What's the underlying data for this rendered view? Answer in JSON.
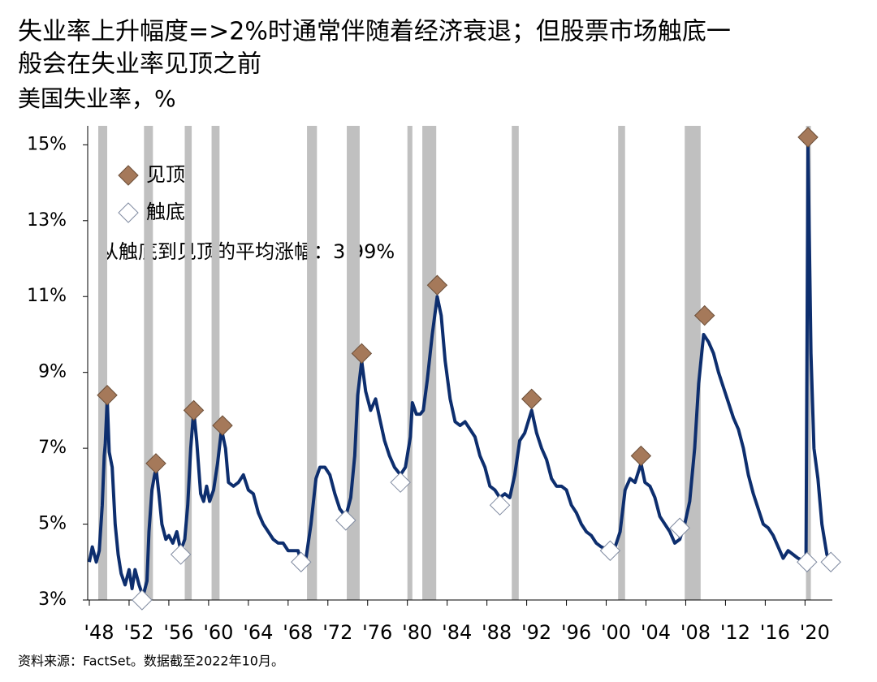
{
  "chart_data": {
    "type": "line",
    "title": [
      "失业率上升幅度=>2%时通常伴随着经济衰退；但股票市场触底一",
      "般会在失业率见顶之前"
    ],
    "subtitle": "美国失业率，%",
    "annotation": "从触底到见顶的平均涨幅：3.99%",
    "source": "资料来源：FactSet。数据截至2022年10月。",
    "xlim": [
      1948,
      2022.75
    ],
    "ylim": [
      3,
      15.5
    ],
    "xticks": [
      {
        "value": 1948,
        "label": "'48"
      },
      {
        "value": 1952,
        "label": "'52"
      },
      {
        "value": 1956,
        "label": "'56"
      },
      {
        "value": 1960,
        "label": "'60"
      },
      {
        "value": 1964,
        "label": "'64"
      },
      {
        "value": 1968,
        "label": "'68"
      },
      {
        "value": 1972,
        "label": "'72"
      },
      {
        "value": 1976,
        "label": "'76"
      },
      {
        "value": 1980,
        "label": "'80"
      },
      {
        "value": 1984,
        "label": "'84"
      },
      {
        "value": 1988,
        "label": "'88"
      },
      {
        "value": 1992,
        "label": "'92"
      },
      {
        "value": 1996,
        "label": "'96"
      },
      {
        "value": 2000,
        "label": "'00"
      },
      {
        "value": 2004,
        "label": "'04"
      },
      {
        "value": 2008,
        "label": "'08"
      },
      {
        "value": 2012,
        "label": "'12"
      },
      {
        "value": 2016,
        "label": "'16"
      },
      {
        "value": 2020,
        "label": "'20"
      }
    ],
    "yticks": [
      {
        "value": 3,
        "label": "3%"
      },
      {
        "value": 5,
        "label": "5%"
      },
      {
        "value": 7,
        "label": "7%"
      },
      {
        "value": 9,
        "label": "9%"
      },
      {
        "value": 11,
        "label": "11%"
      },
      {
        "value": 13,
        "label": "13%"
      },
      {
        "value": 15,
        "label": "15%"
      }
    ],
    "recession_color": "#c0c0c0",
    "recessions": [
      [
        1948.9,
        1949.8
      ],
      [
        1953.5,
        1954.4
      ],
      [
        1957.6,
        1958.3
      ],
      [
        1960.3,
        1961.1
      ],
      [
        1969.9,
        1970.9
      ],
      [
        1973.9,
        1975.2
      ],
      [
        1980.0,
        1980.5
      ],
      [
        1981.5,
        1982.9
      ],
      [
        1990.5,
        1991.2
      ],
      [
        2001.2,
        2001.9
      ],
      [
        2007.9,
        2009.5
      ],
      [
        2020.1,
        2020.3
      ]
    ],
    "series": [
      {
        "color": "#0d2e6e",
        "x": [
          1948.0,
          1948.3,
          1948.7,
          1949.0,
          1949.3,
          1949.5,
          1949.6,
          1949.8,
          1950.0,
          1950.3,
          1950.6,
          1950.9,
          1951.2,
          1951.6,
          1952.0,
          1952.3,
          1952.6,
          1953.0,
          1953.4,
          1953.8,
          1954.0,
          1954.3,
          1954.7,
          1955.0,
          1955.3,
          1955.7,
          1956.0,
          1956.4,
          1956.8,
          1957.2,
          1957.6,
          1957.9,
          1958.2,
          1958.5,
          1958.8,
          1959.2,
          1959.5,
          1959.8,
          1960.1,
          1960.5,
          1960.9,
          1961.3,
          1961.7,
          1962.0,
          1962.5,
          1963.0,
          1963.5,
          1964.0,
          1964.5,
          1965.0,
          1965.5,
          1966.0,
          1966.5,
          1967.0,
          1967.5,
          1968.0,
          1968.5,
          1969.0,
          1969.3,
          1969.8,
          1970.3,
          1970.8,
          1971.2,
          1971.7,
          1972.2,
          1972.7,
          1973.2,
          1973.8,
          1974.3,
          1974.7,
          1975.0,
          1975.4,
          1975.8,
          1976.3,
          1976.8,
          1977.2,
          1977.7,
          1978.2,
          1978.7,
          1979.3,
          1979.8,
          1980.3,
          1980.5,
          1980.9,
          1981.3,
          1981.6,
          1982.0,
          1982.5,
          1983.0,
          1983.4,
          1983.8,
          1984.3,
          1984.8,
          1985.3,
          1985.8,
          1986.3,
          1986.8,
          1987.3,
          1987.8,
          1988.3,
          1988.8,
          1989.3,
          1989.8,
          1990.3,
          1990.8,
          1991.3,
          1991.8,
          1992.5,
          1993.0,
          1993.5,
          1994.0,
          1994.5,
          1995.0,
          1995.5,
          1996.0,
          1996.5,
          1997.0,
          1997.5,
          1998.0,
          1998.5,
          1999.0,
          1999.5,
          2000.4,
          2000.9,
          2001.4,
          2001.9,
          2002.4,
          2002.9,
          2003.5,
          2003.9,
          2004.4,
          2004.9,
          2005.4,
          2005.9,
          2006.4,
          2006.9,
          2007.4,
          2007.9,
          2008.4,
          2008.9,
          2009.3,
          2009.8,
          2010.3,
          2010.8,
          2011.3,
          2011.8,
          2012.3,
          2012.8,
          2013.3,
          2013.8,
          2014.3,
          2014.8,
          2015.3,
          2015.8,
          2016.3,
          2016.8,
          2017.3,
          2017.8,
          2018.3,
          2019.3,
          2020.1,
          2020.3,
          2020.6,
          2020.9,
          2021.3,
          2021.7,
          2022.2,
          2022.6
        ],
        "values": [
          4.0,
          4.4,
          4.0,
          4.3,
          5.5,
          6.8,
          7.1,
          8.3,
          6.9,
          6.5,
          5.0,
          4.2,
          3.7,
          3.4,
          3.8,
          3.3,
          3.8,
          3.4,
          3.1,
          3.5,
          4.8,
          5.9,
          6.5,
          5.8,
          5.0,
          4.6,
          4.7,
          4.5,
          4.8,
          4.3,
          4.6,
          5.5,
          7.0,
          8.0,
          7.2,
          5.8,
          5.6,
          6.0,
          5.6,
          5.9,
          6.6,
          7.5,
          7.0,
          6.1,
          6.0,
          6.1,
          6.3,
          5.9,
          5.8,
          5.3,
          5.0,
          4.8,
          4.6,
          4.5,
          4.5,
          4.3,
          4.3,
          4.3,
          4.0,
          4.1,
          5.0,
          6.2,
          6.5,
          6.5,
          6.3,
          5.8,
          5.4,
          5.2,
          5.7,
          6.8,
          8.4,
          9.3,
          8.5,
          8.0,
          8.3,
          7.8,
          7.2,
          6.8,
          6.5,
          6.3,
          6.5,
          7.3,
          8.2,
          7.9,
          7.9,
          8.0,
          8.8,
          10.0,
          11.0,
          10.5,
          9.3,
          8.3,
          7.7,
          7.6,
          7.7,
          7.5,
          7.3,
          6.8,
          6.5,
          6.0,
          5.9,
          5.7,
          5.8,
          5.7,
          6.3,
          7.2,
          7.4,
          8.0,
          7.4,
          7.0,
          6.7,
          6.2,
          6.0,
          6.0,
          5.9,
          5.5,
          5.3,
          5.0,
          4.8,
          4.7,
          4.5,
          4.4,
          4.3,
          4.4,
          4.8,
          5.9,
          6.2,
          6.1,
          6.6,
          6.1,
          6.0,
          5.7,
          5.2,
          5.0,
          4.8,
          4.5,
          4.6,
          5.0,
          5.6,
          7.0,
          8.7,
          10.0,
          9.8,
          9.5,
          9.0,
          8.6,
          8.2,
          7.8,
          7.5,
          7.0,
          6.3,
          5.8,
          5.4,
          5.0,
          4.9,
          4.7,
          4.4,
          4.1,
          4.3,
          4.1,
          4.0,
          15.0,
          9.5,
          7.0,
          6.2,
          5.0,
          4.2,
          4.0
        ]
      },
      {
        "name": "见顶",
        "color": "#a5795a",
        "x": [
          1949.8,
          1954.7,
          1958.5,
          1961.4,
          1975.4,
          1983.0,
          1992.5,
          2003.5,
          2009.9,
          2020.3
        ],
        "values": [
          8.4,
          6.6,
          8.0,
          7.6,
          9.5,
          11.3,
          8.3,
          6.8,
          10.5,
          15.2
        ]
      },
      {
        "name": "触底",
        "color": "#ffffff",
        "x": [
          1953.3,
          1957.2,
          1969.3,
          1973.8,
          1979.3,
          1989.3,
          2000.4,
          2007.4,
          2020.2,
          2022.6
        ],
        "values": [
          3.0,
          4.2,
          4.0,
          5.1,
          6.1,
          5.5,
          4.3,
          4.9,
          4.0,
          4.0
        ]
      }
    ]
  }
}
